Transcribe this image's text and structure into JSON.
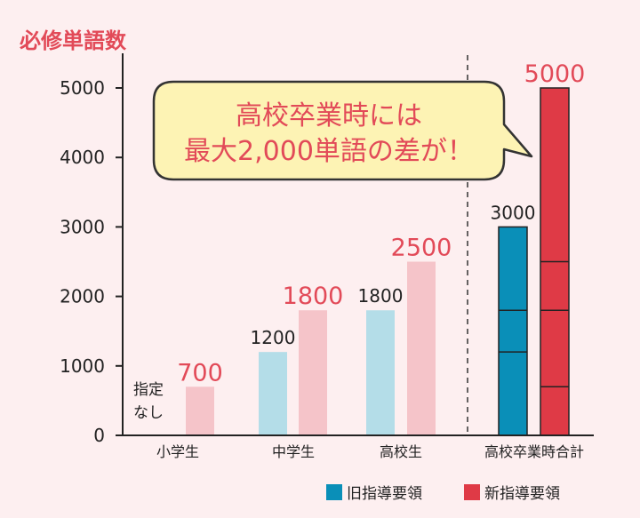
{
  "chart_data": {
    "type": "bar",
    "ylabel": "必修単語数",
    "ylim": [
      0,
      5000
    ],
    "yticks": [
      0,
      1000,
      2000,
      3000,
      4000,
      5000
    ],
    "categories": [
      "小学生",
      "中学生",
      "高校生",
      "高校卒業時合計"
    ],
    "series": [
      {
        "name": "旧指導要領",
        "values": [
          null,
          1200,
          1800,
          3000
        ],
        "labels": [
          "",
          "1200",
          "1800",
          "3000"
        ],
        "segments": [
          [],
          [],
          [],
          [
            1200,
            1800
          ]
        ]
      },
      {
        "name": "新指導要領",
        "values": [
          700,
          1800,
          2500,
          5000
        ],
        "labels": [
          "700",
          "1800",
          "2500",
          "5000"
        ],
        "segments": [
          [],
          [],
          [],
          [
            700,
            1800,
            2500
          ]
        ]
      }
    ],
    "annotations": {
      "no_designation": [
        "指定",
        "なし"
      ],
      "callout": [
        "高校卒業時には",
        "最大2,000単語の差が！"
      ]
    },
    "colors": {
      "old_light": "#b4dde8",
      "old_total": "#0a8fb8",
      "new_light": "#f5c4c9",
      "new_total": "#df3a46",
      "accent_text": "#e24a58",
      "bubble_fill": "#fdf3b4",
      "bubble_stroke": "#333333"
    },
    "legend": "bottom-right"
  }
}
